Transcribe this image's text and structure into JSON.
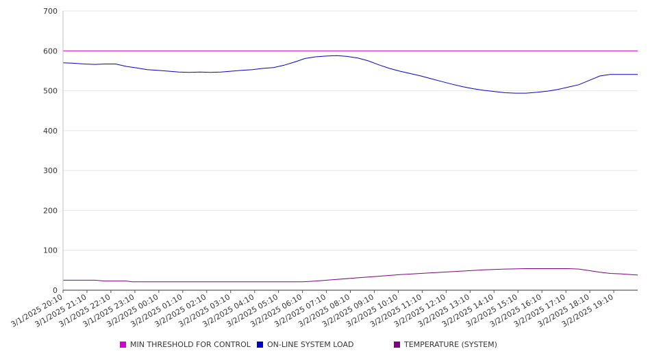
{
  "chart_data": {
    "type": "line",
    "title": "",
    "xlabel": "",
    "ylabel": "",
    "ylim": [
      0,
      700
    ],
    "yticks": [
      "0",
      "100",
      "200",
      "300",
      "400",
      "500",
      "600",
      "700"
    ],
    "y_values": [
      0,
      100,
      200,
      300,
      400,
      500,
      600,
      700
    ],
    "x_range": [
      "3/1/2025 20:10",
      "3/2/2025 20:10"
    ],
    "xticks": [
      {
        "label": "3/1/2025 20:10",
        "hour": 0
      },
      {
        "label": "3/1/2025 21:10",
        "hour": 1
      },
      {
        "label": "3/1/2025 22:10",
        "hour": 2
      },
      {
        "label": "3/1/2025 23:10",
        "hour": 3
      },
      {
        "label": "3/2/2025 00:10",
        "hour": 4
      },
      {
        "label": "3/2/2025 01:10",
        "hour": 5
      },
      {
        "label": "3/2/2025 02:10",
        "hour": 6
      },
      {
        "label": "3/2/2025 03:10",
        "hour": 7
      },
      {
        "label": "3/2/2025 04:10",
        "hour": 8
      },
      {
        "label": "3/2/2025 05:10",
        "hour": 9
      },
      {
        "label": "3/2/2025 06:10",
        "hour": 10
      },
      {
        "label": "3/2/2025 07:10",
        "hour": 11
      },
      {
        "label": "3/2/2025 08:10",
        "hour": 12
      },
      {
        "label": "3/2/2025 09:10",
        "hour": 13
      },
      {
        "label": "3/2/2025 10:10",
        "hour": 14
      },
      {
        "label": "3/2/2025 11:10",
        "hour": 15
      },
      {
        "label": "3/2/2025 12:10",
        "hour": 16
      },
      {
        "label": "3/2/2025 13:10",
        "hour": 17
      },
      {
        "label": "3/2/2025 14:10",
        "hour": 18
      },
      {
        "label": "3/2/2025 15:10",
        "hour": 19
      },
      {
        "label": "3/2/2025 16:10",
        "hour": 20
      },
      {
        "label": "3/2/2025 17:10",
        "hour": 21
      },
      {
        "label": "3/2/2025 18:10",
        "hour": 22
      },
      {
        "label": "3/2/2025 19:10",
        "hour": 23
      }
    ],
    "grid": true,
    "legend_position": "bottom",
    "series": [
      {
        "name": "MIN THRESHOLD FOR CONTROL",
        "color": "#d400d4",
        "points": [
          [
            0,
            600
          ],
          [
            24,
            600
          ]
        ]
      },
      {
        "name": "ON-LINE SYSTEM LOAD",
        "color": "#0000cc",
        "points": [
          [
            0,
            570
          ],
          [
            0.5,
            569
          ],
          [
            1,
            567
          ],
          [
            1.5,
            566
          ],
          [
            2,
            567
          ],
          [
            2.5,
            567
          ],
          [
            3,
            561
          ],
          [
            3.5,
            557
          ],
          [
            4,
            553
          ],
          [
            4.5,
            551
          ],
          [
            5,
            549
          ],
          [
            5.5,
            547
          ],
          [
            6,
            546
          ],
          [
            6.5,
            547
          ],
          [
            7,
            546
          ],
          [
            7.5,
            547
          ],
          [
            8,
            549
          ],
          [
            8.5,
            551
          ],
          [
            9,
            553
          ],
          [
            9.5,
            556
          ],
          [
            10,
            558
          ],
          [
            10.5,
            564
          ],
          [
            11,
            572
          ],
          [
            11.5,
            581
          ],
          [
            12,
            585
          ],
          [
            12.5,
            587
          ],
          [
            13,
            588
          ],
          [
            13.5,
            586
          ],
          [
            14,
            582
          ],
          [
            14.5,
            575
          ],
          [
            15,
            565
          ],
          [
            15.5,
            556
          ],
          [
            16,
            549
          ],
          [
            16.5,
            543
          ],
          [
            17,
            537
          ],
          [
            17.5,
            530
          ],
          [
            18,
            523
          ],
          [
            18.5,
            516
          ],
          [
            19,
            510
          ],
          [
            19.5,
            505
          ],
          [
            20,
            501
          ],
          [
            20.5,
            498
          ],
          [
            21,
            495
          ],
          [
            21.5,
            494
          ],
          [
            22,
            494
          ],
          [
            22.5,
            496
          ],
          [
            23,
            499
          ],
          [
            23.5,
            503
          ],
          [
            24,
            509
          ],
          [
            24.5,
            515
          ],
          [
            25,
            526
          ],
          [
            25.5,
            537
          ],
          [
            26,
            541
          ],
          [
            26.5,
            541
          ],
          [
            27,
            541
          ],
          [
            27.3,
            541
          ]
        ]
      },
      {
        "name": "TEMPERATURE (SYSTEM)",
        "color": "#800080",
        "points": [
          [
            0,
            25
          ],
          [
            1.5,
            25
          ],
          [
            2,
            23
          ],
          [
            3,
            23
          ],
          [
            3.3,
            21
          ],
          [
            5,
            21
          ],
          [
            8,
            21
          ],
          [
            11,
            21
          ],
          [
            11.4,
            21
          ],
          [
            12,
            23
          ],
          [
            13,
            27
          ],
          [
            14,
            31
          ],
          [
            15,
            35
          ],
          [
            16,
            39
          ],
          [
            17,
            42
          ],
          [
            18,
            45
          ],
          [
            19,
            48
          ],
          [
            20,
            51
          ],
          [
            21,
            53
          ],
          [
            22,
            54
          ],
          [
            23,
            54
          ],
          [
            24,
            54
          ],
          [
            24.5,
            53
          ],
          [
            25,
            49
          ],
          [
            25.5,
            45
          ],
          [
            26,
            42
          ],
          [
            26.5,
            41
          ],
          [
            27,
            39
          ],
          [
            27.3,
            38
          ]
        ]
      }
    ]
  },
  "legend": {
    "items": [
      {
        "label": "MIN THRESHOLD FOR CONTROL",
        "color": "#d400d4"
      },
      {
        "label": "ON-LINE SYSTEM LOAD",
        "color": "#0000cc"
      },
      {
        "label": "TEMPERATURE (SYSTEM)",
        "color": "#800080"
      }
    ]
  }
}
